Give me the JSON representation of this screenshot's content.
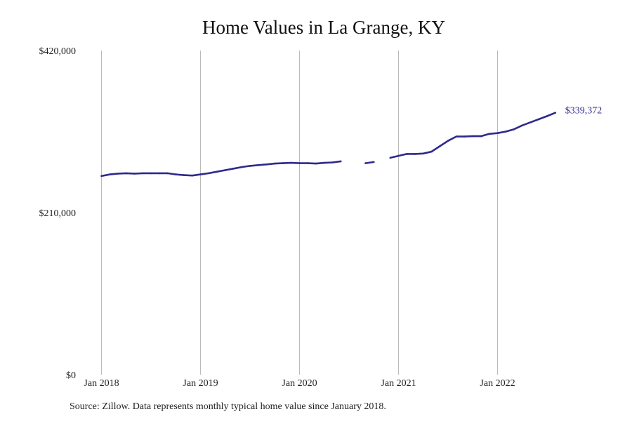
{
  "title": "Home Values in La Grange, KY",
  "source_note": "Source: Zillow. Data represents monthly typical home value since January 2018.",
  "colors": {
    "line": "#2e2a8c",
    "grid": "#bbbbbb",
    "text": "#222222"
  },
  "chart_data": {
    "type": "line",
    "title": "Home Values in La Grange, KY",
    "xlabel": "",
    "ylabel": "",
    "x_ticks": [
      "Jan 2018",
      "Jan 2019",
      "Jan 2020",
      "Jan 2021",
      "Jan 2022"
    ],
    "y_ticks": [
      "$0",
      "$210,000",
      "$420,000"
    ],
    "ylim": [
      0,
      420000
    ],
    "grid": "vertical lines at January of each year",
    "end_label": "$339,372",
    "note": "Line has gaps (missing months) during mid/late 2020",
    "series": [
      {
        "name": "",
        "points": [
          [
            "2018-01",
            257500
          ],
          [
            "2018-02",
            259500
          ],
          [
            "2018-03",
            260500
          ],
          [
            "2018-04",
            261000
          ],
          [
            "2018-05",
            260500
          ],
          [
            "2018-06",
            261000
          ],
          [
            "2018-07",
            261000
          ],
          [
            "2018-08",
            261000
          ],
          [
            "2018-09",
            261000
          ],
          [
            "2018-10",
            259500
          ],
          [
            "2018-11",
            258500
          ],
          [
            "2018-12",
            258000
          ],
          [
            "2019-01",
            259500
          ],
          [
            "2019-02",
            261000
          ],
          [
            "2019-03",
            263000
          ],
          [
            "2019-04",
            265000
          ],
          [
            "2019-05",
            267000
          ],
          [
            "2019-06",
            269000
          ],
          [
            "2019-07",
            270500
          ],
          [
            "2019-08",
            271500
          ],
          [
            "2019-09",
            272500
          ],
          [
            "2019-10",
            273500
          ],
          [
            "2019-11",
            274000
          ],
          [
            "2019-12",
            274500
          ],
          [
            "2020-01",
            274000
          ],
          [
            "2020-02",
            274000
          ],
          [
            "2020-03",
            273500
          ],
          [
            "2020-04",
            274500
          ],
          [
            "2020-05",
            275000
          ],
          [
            "2020-06",
            276500
          ],
          [
            "2020-07",
            null
          ],
          [
            "2020-08",
            null
          ],
          [
            "2020-09",
            274000
          ],
          [
            "2020-10",
            275500
          ],
          [
            "2020-11",
            null
          ],
          [
            "2020-12",
            281000
          ],
          [
            "2021-01",
            283500
          ],
          [
            "2021-02",
            286000
          ],
          [
            "2021-03",
            286000
          ],
          [
            "2021-04",
            286500
          ],
          [
            "2021-05",
            289000
          ],
          [
            "2021-06",
            296000
          ],
          [
            "2021-07",
            303000
          ],
          [
            "2021-08",
            308500
          ],
          [
            "2021-09",
            308500
          ],
          [
            "2021-10",
            309000
          ],
          [
            "2021-11",
            309000
          ],
          [
            "2021-12",
            312000
          ],
          [
            "2022-01",
            313000
          ],
          [
            "2022-02",
            315000
          ],
          [
            "2022-03",
            318000
          ],
          [
            "2022-04",
            323000
          ],
          [
            "2022-05",
            327000
          ],
          [
            "2022-06",
            331000
          ],
          [
            "2022-07",
            335000
          ],
          [
            "2022-08",
            339372
          ]
        ]
      }
    ]
  }
}
